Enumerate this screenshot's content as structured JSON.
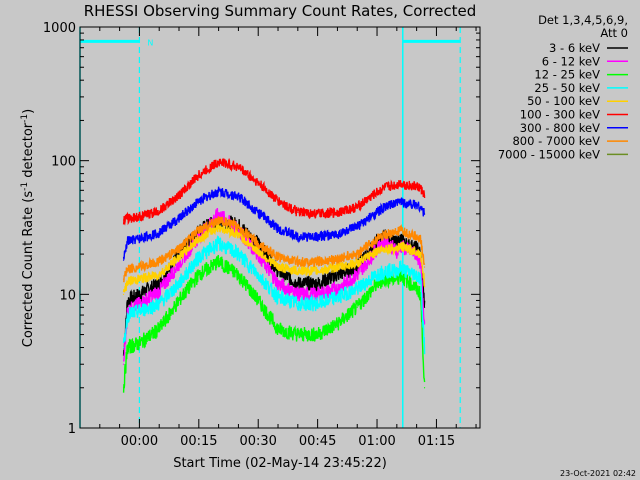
{
  "chart_data": {
    "type": "line",
    "title": "RHESSI Observing Summary Count Rates, Corrected",
    "xlabel": "Start Time (02-May-14 23:45:22)",
    "ylabel": "Corrected Count Rate (s⁻¹ detector⁻¹)",
    "y_scale": "log",
    "ylim": [
      1,
      1000
    ],
    "xlim_minutes": [
      -15,
      86
    ],
    "x_ticks": [
      "00:00",
      "00:15",
      "00:30",
      "00:45",
      "01:00",
      "01:15"
    ],
    "y_ticks": [
      "1",
      "10",
      "100",
      "1000"
    ],
    "legend_header": [
      "Det 1,3,4,5,6,9,",
      "Att 0"
    ],
    "legend_position": "right",
    "footer": "23-Oct-2021 02:42",
    "annotations": {
      "night_marker": "N",
      "solid_cyan_lines_min": [
        -15,
        66.5
      ],
      "dashed_cyan_lines_min": [
        0,
        81
      ],
      "cyan_bar_segments_min": [
        [
          -15,
          0
        ],
        [
          66.5,
          81
        ]
      ],
      "cyan_bar_value": 780
    },
    "series": [
      {
        "name": "3 - 6 keV",
        "color": "#000000",
        "x": [
          -4,
          -3,
          0,
          5,
          10,
          15,
          20,
          25,
          30,
          35,
          40,
          45,
          50,
          55,
          60,
          62,
          65,
          66,
          67,
          70,
          71,
          72
        ],
        "values": [
          3.5,
          9,
          10,
          12,
          20,
          30,
          36,
          33,
          24,
          15,
          12,
          12,
          14,
          16,
          25,
          27,
          24,
          26,
          24,
          22,
          20,
          8
        ]
      },
      {
        "name": "6 - 12 keV",
        "color": "#ff00ff",
        "x": [
          -4,
          -3,
          0,
          5,
          10,
          15,
          20,
          25,
          30,
          35,
          40,
          45,
          50,
          55,
          60,
          62,
          65,
          66,
          67,
          70,
          71,
          72
        ],
        "values": [
          3,
          7.5,
          8.5,
          10.5,
          17,
          27,
          40,
          30,
          20,
          12,
          10,
          10,
          11,
          14,
          22,
          25,
          21,
          23,
          22,
          20,
          17,
          6
        ]
      },
      {
        "name": "12 - 25 keV",
        "color": "#00ff00",
        "x": [
          -4,
          -3,
          0,
          5,
          10,
          15,
          20,
          25,
          30,
          35,
          40,
          45,
          50,
          55,
          60,
          62,
          65,
          66,
          67,
          70,
          71,
          72
        ],
        "values": [
          2,
          4,
          4.3,
          5.5,
          9,
          14,
          17.5,
          14,
          9,
          5.5,
          5,
          5,
          6,
          8,
          12,
          13,
          13,
          14,
          13,
          11,
          10,
          2
        ]
      },
      {
        "name": "25 - 50 keV",
        "color": "#00ffff",
        "x": [
          -4,
          -3,
          0,
          5,
          10,
          15,
          20,
          25,
          30,
          35,
          40,
          45,
          50,
          55,
          60,
          62,
          65,
          66,
          67,
          70,
          71,
          72
        ],
        "values": [
          4,
          7,
          7.5,
          8.5,
          12,
          19,
          24,
          20,
          14,
          9.5,
          8.5,
          8.5,
          9.5,
          11,
          14,
          15,
          15,
          16,
          15,
          14,
          13,
          4
        ]
      },
      {
        "name": "50 - 100 keV",
        "color": "#ffd000",
        "x": [
          -4,
          -3,
          0,
          5,
          10,
          15,
          20,
          25,
          30,
          35,
          40,
          45,
          50,
          55,
          60,
          62,
          65,
          66,
          67,
          70,
          71,
          72
        ],
        "values": [
          10,
          12.5,
          13,
          14,
          19,
          26,
          32,
          28,
          21,
          16,
          15,
          15,
          16,
          17,
          21,
          22,
          22,
          23,
          22,
          21,
          20,
          12
        ]
      },
      {
        "name": "100 - 300 keV",
        "color": "#ff0000",
        "x": [
          -4,
          -3,
          0,
          5,
          10,
          15,
          20,
          25,
          30,
          35,
          40,
          45,
          50,
          55,
          60,
          62,
          65,
          66,
          67,
          70,
          71,
          72
        ],
        "values": [
          36,
          37,
          38,
          42,
          55,
          78,
          98,
          90,
          68,
          50,
          41,
          40,
          41,
          45,
          58,
          63,
          66,
          68,
          66,
          64,
          62,
          55
        ]
      },
      {
        "name": "300 - 800 keV",
        "color": "#0000ff",
        "x": [
          -4,
          -3,
          0,
          5,
          10,
          15,
          20,
          25,
          30,
          35,
          40,
          45,
          50,
          55,
          60,
          62,
          65,
          66,
          67,
          70,
          71,
          72
        ],
        "values": [
          18,
          25,
          26,
          29,
          37,
          50,
          59,
          54,
          41,
          31,
          27,
          27,
          28,
          32,
          41,
          45,
          48,
          50,
          48,
          47,
          45,
          40
        ]
      },
      {
        "name": "800 - 7000 keV",
        "color": "#ff8800",
        "x": [
          -4,
          -3,
          0,
          5,
          10,
          15,
          20,
          25,
          30,
          35,
          40,
          45,
          50,
          55,
          60,
          62,
          65,
          66,
          67,
          70,
          71,
          72
        ],
        "values": [
          13,
          15.5,
          16,
          17.5,
          22,
          30,
          36,
          32,
          24,
          19,
          17.5,
          17.5,
          18.5,
          20,
          26,
          28,
          29,
          30,
          29,
          27,
          26,
          16
        ]
      },
      {
        "name": "7000 - 15000 keV",
        "color": "#6b8e23",
        "x": [],
        "values": []
      }
    ]
  }
}
